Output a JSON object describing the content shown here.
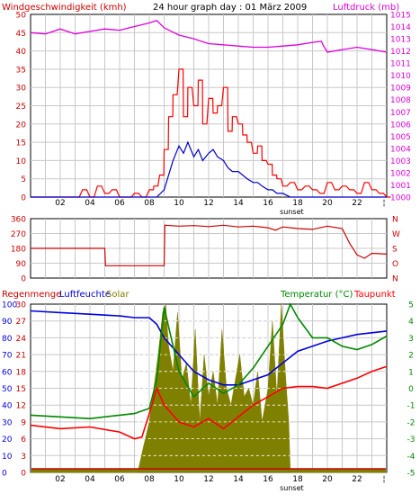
{
  "colors": {
    "wind_axis": "#cc0000",
    "pressure": "#dd00dd",
    "wind_gust": "#ff0000",
    "wind_avg": "#0000cc",
    "direction": "#cc0000",
    "rain": "#cc0000",
    "humidity": "#0000dd",
    "solar": "#808000",
    "temperature": "#008800",
    "dewpoint": "#ff0000",
    "title": "#000000",
    "grid": "#c8c8c8",
    "grid_dash": "#ffffff"
  },
  "chart_data": [
    {
      "type": "line",
      "panel": "wind_pressure",
      "title": "24 hour graph day : 01 März 2009",
      "ylabel": "Windgeschwindigkeit (kmh)",
      "y2label": "Luftdruck (mb)",
      "ylim": [
        0,
        50
      ],
      "yticks": [
        "0",
        "5",
        "10",
        "15",
        "20",
        "25",
        "30",
        "35",
        "40",
        "45",
        "50"
      ],
      "y2lim": [
        1000,
        1015
      ],
      "y2ticks": [
        "1000",
        "1001",
        "1002",
        "1003",
        "1004",
        "1005",
        "1006",
        "1007",
        "1008",
        "1009",
        "1010",
        "1011",
        "1012",
        "1013",
        "1014",
        "1015"
      ],
      "xlim": [
        0,
        24
      ],
      "xticks": [
        "02",
        "04",
        "06",
        "08",
        "10",
        "12",
        "14",
        "16",
        "18",
        "20",
        "22"
      ],
      "xtick_hours": [
        2,
        4,
        6,
        8,
        10,
        12,
        14,
        16,
        18,
        20,
        22
      ],
      "sunset_label": "sunset",
      "sunset_hour": 17.6,
      "grid": true,
      "series": [
        {
          "name": "Luftdruck",
          "axis": "y2",
          "x": [
            0,
            1,
            2,
            3,
            4,
            5,
            6,
            7,
            8,
            8.5,
            9,
            10,
            11,
            12,
            13,
            14,
            15,
            16,
            17,
            18,
            19,
            19.6,
            19.7,
            20,
            21,
            22,
            23,
            24
          ],
          "values": [
            1013.5,
            1013.4,
            1013.8,
            1013.4,
            1013.6,
            1013.8,
            1013.7,
            1014,
            1014.3,
            1014.5,
            1013.9,
            1013.3,
            1013,
            1012.6,
            1012.5,
            1012.4,
            1012.3,
            1012.3,
            1012.4,
            1012.5,
            1012.7,
            1012.8,
            1012.5,
            1011.9,
            1012.1,
            1012.3,
            1012.1,
            1011.9
          ]
        },
        {
          "name": "Windböe",
          "axis": "y",
          "x": [
            0,
            3,
            3.5,
            4,
            4.5,
            5,
            5.5,
            6,
            6.5,
            7,
            7.5,
            8,
            8.3,
            8.7,
            9,
            9.3,
            9.6,
            10,
            10.3,
            10.6,
            11,
            11.3,
            11.6,
            12,
            12.3,
            12.6,
            13,
            13.3,
            13.6,
            14,
            14.3,
            14.6,
            15,
            15.3,
            15.6,
            16,
            16.3,
            16.6,
            17,
            17.5,
            18,
            18.5,
            19,
            19.5,
            20,
            20.5,
            21,
            21.5,
            22,
            22.5,
            23,
            23.5,
            24
          ],
          "values": [
            0,
            0,
            2,
            0,
            3,
            1,
            2,
            0,
            0,
            1,
            0,
            2,
            3,
            6,
            13,
            22,
            28,
            35,
            22,
            30,
            25,
            32,
            20,
            27,
            23,
            25,
            30,
            18,
            22,
            20,
            17,
            15,
            12,
            14,
            10,
            9,
            6,
            5,
            3,
            4,
            2,
            3,
            2,
            1,
            4,
            2,
            3,
            2,
            1,
            4,
            2,
            1,
            0
          ]
        },
        {
          "name": "Wind",
          "axis": "y",
          "x": [
            0,
            8,
            8.5,
            9,
            9.3,
            9.6,
            10,
            10.3,
            10.6,
            11,
            11.3,
            11.6,
            12,
            12.3,
            12.6,
            13,
            13.3,
            13.6,
            14,
            14.3,
            14.6,
            15,
            15.3,
            15.6,
            16,
            16.3,
            16.6,
            17,
            17.5,
            18,
            19,
            20,
            21,
            22,
            23,
            24
          ],
          "values": [
            0,
            0,
            0,
            2,
            6,
            10,
            14,
            12,
            15,
            11,
            13,
            10,
            12,
            13,
            11,
            10,
            8,
            7,
            7,
            6,
            5,
            4,
            4,
            3,
            2,
            2,
            1,
            1,
            0,
            0,
            0,
            0,
            0,
            0,
            0,
            0
          ]
        }
      ]
    },
    {
      "type": "line",
      "panel": "wind_direction",
      "ylim": [
        0,
        360
      ],
      "yticks": [
        "0",
        "90",
        "180",
        "270",
        "360"
      ],
      "y2ticks": [
        "N",
        "O",
        "S",
        "W",
        "N"
      ],
      "xlim": [
        0,
        24
      ],
      "grid": true,
      "series": [
        {
          "name": "Windrichtung",
          "x": [
            0,
            5,
            5.05,
            9,
            9.05,
            10,
            11,
            12,
            13,
            14,
            15,
            16,
            16.5,
            17,
            18,
            19,
            20,
            21,
            21.5,
            22,
            22.5,
            23,
            24
          ],
          "values": [
            180,
            180,
            75,
            75,
            320,
            315,
            318,
            312,
            320,
            310,
            315,
            305,
            290,
            310,
            300,
            295,
            315,
            300,
            210,
            140,
            120,
            150,
            145
          ]
        }
      ]
    },
    {
      "type": "line",
      "panel": "rain_humidity_solar_temp",
      "legend": [
        "Regenmenge",
        "Luftfeuchte",
        "Solar",
        "Temperatur (°C)",
        "Taupunkt"
      ],
      "ylim_rain": [
        0,
        30
      ],
      "yticks_rain": [
        "0",
        "3",
        "6",
        "9",
        "12",
        "15",
        "18",
        "21",
        "24",
        "27",
        "30"
      ],
      "ylim_humidity": [
        0,
        100
      ],
      "yticks_humidity": [
        "0",
        "10",
        "20",
        "30",
        "40",
        "50",
        "60",
        "70",
        "80",
        "90",
        "100"
      ],
      "ylim_temperature": [
        -5,
        5
      ],
      "yticks_temperature": [
        "-5",
        "-4",
        "-3",
        "-2",
        "-1",
        "0",
        "1",
        "2",
        "3",
        "4",
        "5"
      ],
      "xlim": [
        0,
        24
      ],
      "xticks": [
        "02",
        "04",
        "06",
        "08",
        "10",
        "12",
        "14",
        "16",
        "18",
        "20",
        "22"
      ],
      "xtick_hours": [
        2,
        4,
        6,
        8,
        10,
        12,
        14,
        16,
        18,
        20,
        22
      ],
      "sunset_label": "sunset",
      "sunset_hour": 17.6,
      "grid": true,
      "series": [
        {
          "name": "Solar",
          "x": [
            0,
            7.2,
            7.3,
            7.6,
            8,
            8.3,
            8.6,
            8.9,
            9.1,
            9.3,
            9.6,
            9.9,
            10.2,
            10.5,
            10.8,
            11.1,
            11.4,
            11.7,
            12,
            12.3,
            12.6,
            12.9,
            13.2,
            13.5,
            13.8,
            14.1,
            14.4,
            14.7,
            15,
            15.3,
            15.6,
            16,
            16.3,
            16.6,
            16.9,
            17.2,
            17.4,
            17.5,
            24
          ],
          "values": [
            0,
            0,
            3,
            15,
            30,
            50,
            70,
            95,
            100,
            75,
            60,
            95,
            55,
            65,
            40,
            85,
            30,
            70,
            45,
            60,
            40,
            85,
            50,
            40,
            55,
            70,
            45,
            50,
            40,
            60,
            30,
            50,
            90,
            45,
            100,
            55,
            30,
            0,
            0
          ]
        },
        {
          "name": "Luftfeuchte",
          "x": [
            0,
            2,
            4,
            6,
            7,
            8,
            8.5,
            9,
            10,
            11,
            12,
            13,
            14,
            15,
            16,
            17,
            18,
            19,
            20,
            21,
            22,
            23,
            24
          ],
          "values": [
            96,
            95,
            94,
            93,
            92,
            92,
            88,
            80,
            70,
            60,
            55,
            52,
            52,
            55,
            58,
            65,
            72,
            75,
            78,
            80,
            82,
            83,
            84
          ]
        },
        {
          "name": "Temperatur",
          "x": [
            0,
            2,
            4,
            6,
            7,
            8,
            8.5,
            9,
            10,
            11,
            12,
            13,
            14,
            15,
            16,
            17,
            17.5,
            18,
            19,
            20,
            21,
            22,
            23,
            24
          ],
          "values": [
            -1.6,
            -1.7,
            -1.8,
            -1.6,
            -1.5,
            -1.2,
            0.5,
            4.8,
            1.0,
            -0.5,
            0.3,
            -0.3,
            0.2,
            1.2,
            2.5,
            3.8,
            5.0,
            4.2,
            3.0,
            3.0,
            2.5,
            2.3,
            2.6,
            3.1
          ]
        },
        {
          "name": "Taupunkt",
          "x": [
            0,
            2,
            4,
            6,
            7,
            7.5,
            8,
            8.5,
            9,
            10,
            11,
            12,
            13,
            14,
            15,
            16,
            17,
            18,
            19,
            20,
            21,
            22,
            23,
            24
          ],
          "values": [
            -2.2,
            -2.4,
            -2.3,
            -2.6,
            -3.0,
            -2.9,
            -1.5,
            0.0,
            -1.0,
            -2.0,
            -2.3,
            -1.8,
            -2.4,
            -1.7,
            -1.0,
            -0.5,
            0.0,
            0.1,
            0.1,
            0.0,
            0.3,
            0.6,
            1.0,
            1.3
          ]
        },
        {
          "name": "Regenmenge",
          "x": [
            0,
            24
          ],
          "values": [
            0,
            0
          ]
        }
      ]
    }
  ]
}
